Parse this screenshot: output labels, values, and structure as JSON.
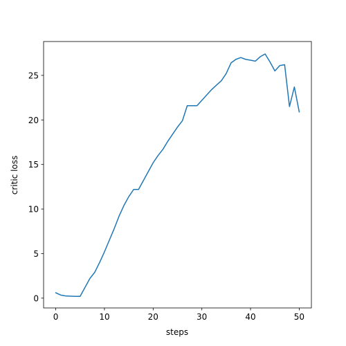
{
  "chart_data": {
    "type": "line",
    "title": "",
    "xlabel": "steps",
    "ylabel": "critic loss",
    "xlim": [
      -2.5,
      52.5
    ],
    "ylim": [
      -1.1,
      28.8
    ],
    "xticks": [
      0,
      10,
      20,
      30,
      40,
      50
    ],
    "yticks": [
      0,
      5,
      10,
      15,
      20,
      25
    ],
    "grid": false,
    "legend": "none",
    "series": [
      {
        "color": "#1f77b4",
        "x": [
          0,
          1,
          2,
          3,
          4,
          5,
          6,
          7,
          8,
          9,
          10,
          11,
          12,
          13,
          14,
          15,
          16,
          17,
          18,
          19,
          20,
          21,
          22,
          23,
          24,
          25,
          26,
          27,
          28,
          29,
          30,
          31,
          32,
          33,
          34,
          35,
          36,
          37,
          38,
          39,
          40,
          41,
          42,
          43,
          44,
          45,
          46,
          47,
          48,
          49,
          50
        ],
        "y": [
          0.6,
          0.35,
          0.25,
          0.22,
          0.2,
          0.2,
          1.2,
          2.2,
          2.9,
          4.0,
          5.2,
          6.5,
          7.8,
          9.2,
          10.4,
          11.4,
          12.2,
          12.2,
          13.2,
          14.2,
          15.2,
          16.0,
          16.7,
          17.6,
          18.4,
          19.2,
          19.9,
          21.6,
          21.6,
          21.6,
          22.2,
          22.8,
          23.4,
          23.9,
          24.4,
          25.2,
          26.4,
          26.8,
          27.0,
          26.8,
          26.7,
          26.6,
          27.1,
          27.4,
          26.5,
          25.5,
          26.1,
          26.2,
          21.5,
          23.7,
          20.9
        ]
      }
    ]
  }
}
